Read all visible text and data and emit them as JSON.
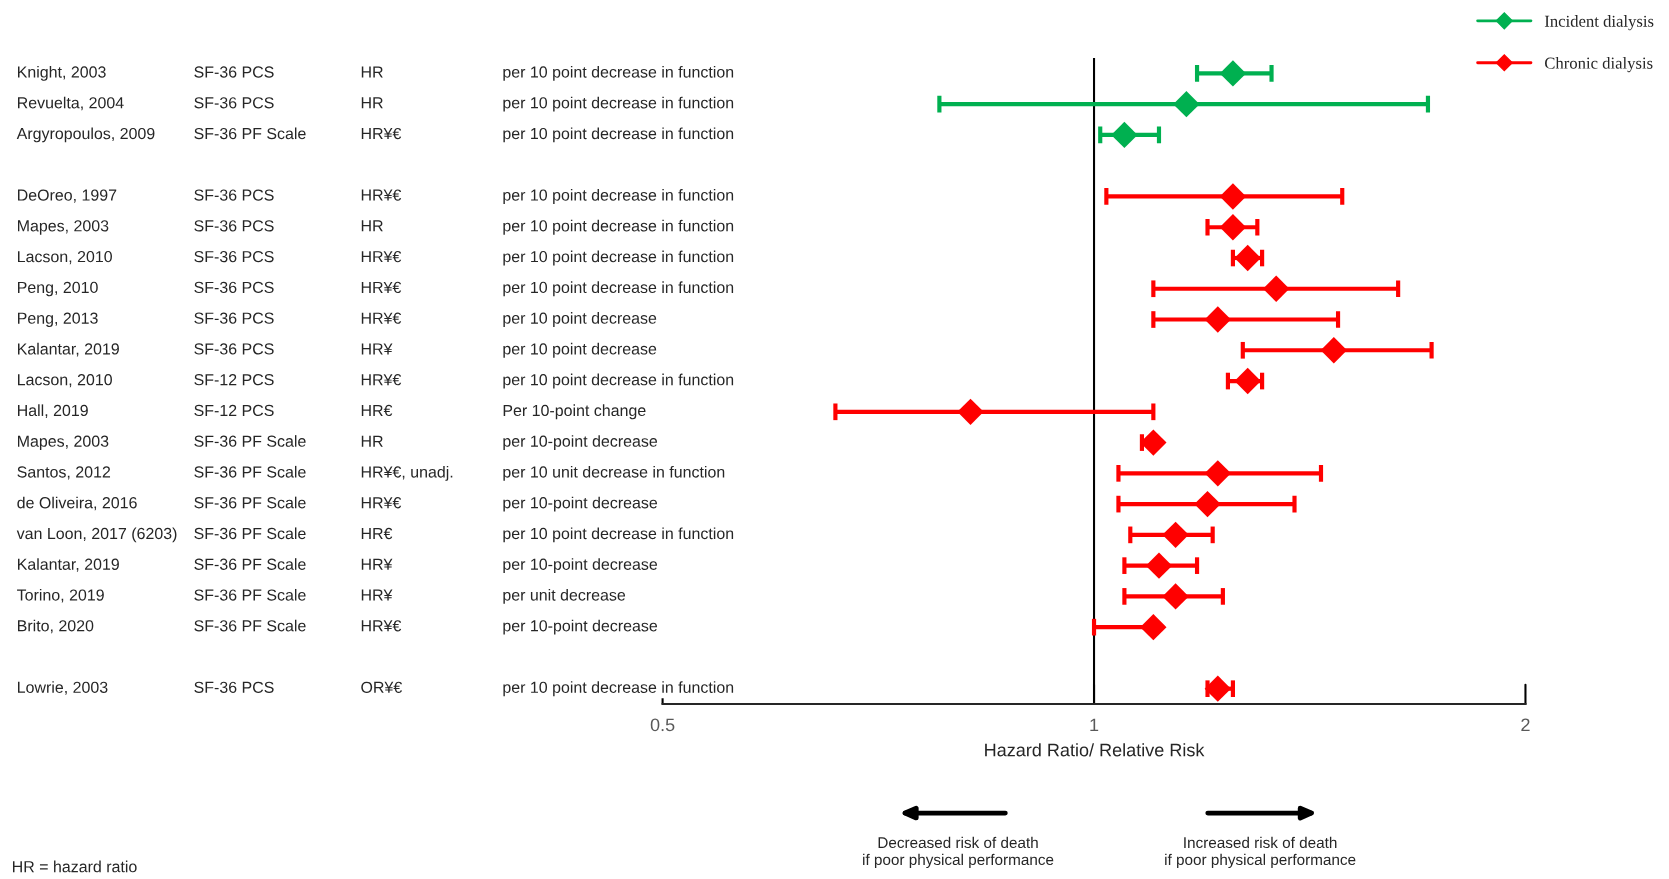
{
  "chart_data": {
    "type": "scatter",
    "orientation": "horizontal",
    "categories": [
      "Knight, 2003\tSF-36 PCS\tHR\tper 10 point decrease in function",
      "Revuelta, 2004\tSF-36 PCS\tHR\tper 10 point decrease in function",
      "Argyropoulos, 2009\tSF-36 PF Scale\tHR¥€\tper 10 point decrease in function",
      null,
      "DeOreo, 1997\tSF-36 PCS\tHR¥€\tper 10 point decrease in function",
      "Mapes, 2003\tSF-36 PCS\tHR\tper 10 point decrease in function",
      "Lacson, 2010\tSF-36 PCS\tHR¥€\tper 10 point decrease in function",
      "Peng, 2010\tSF-36 PCS\tHR¥€\tper 10 point decrease in function",
      "Peng, 2013\tSF-36 PCS\tHR¥€\tper 10 point decrease",
      "Kalantar, 2019\tSF-36 PCS\tHR¥\tper 10 point decrease",
      "Lacson, 2010\tSF-12 PCS\tHR¥€\tper 10 point decrease in function",
      "Hall, 2019\tSF-12 PCS\tHR€\tPer 10-point change",
      "Mapes, 2003\tSF-36 PF Scale\tHR\tper 10-point decrease",
      "Santos, 2012\tSF-36 PF Scale\tHR¥€, unadj.\tper 10 unit decrease in function",
      "de Oliveira, 2016\tSF-36 PF Scale\tHR¥€\tper 10-point decrease",
      "van Loon, 2017 (6203)\tSF-36 PF Scale\tHR€\tper 10 point decrease in function",
      "Kalantar, 2019\tSF-36 PF Scale\tHR¥\tper 10-point decrease",
      "Torino, 2019\tSF-36 PF Scale\tHR¥\tper unit decrease",
      "Brito, 2020\tSF-36 PF Scale\tHR¥€\tper 10-point decrease",
      null,
      "Lowrie, 2003\tSF-36 PCS\tOR¥€\tper 10 point decrease in function"
    ],
    "series": [
      {
        "name": "Incident dialysis",
        "color": "#00b050",
        "values": [
          1.25,
          1.16,
          1.05,
          null,
          null,
          null,
          null,
          null,
          null,
          null,
          null,
          null,
          null,
          null,
          null,
          null,
          null,
          null,
          null,
          null,
          null
        ],
        "errors": [
          [
            1.18,
            1.33
          ],
          [
            0.78,
            1.71
          ],
          [
            1.01,
            1.11
          ],
          null,
          null,
          null,
          null,
          null,
          null,
          null,
          null,
          null,
          null,
          null,
          null,
          null,
          null,
          null,
          null,
          null,
          null
        ]
      },
      {
        "name": "Chronic dialysis",
        "color": "#ff0000",
        "values": [
          null,
          null,
          null,
          null,
          1.25,
          1.25,
          1.28,
          1.34,
          1.22,
          1.47,
          1.28,
          0.82,
          1.1,
          1.22,
          1.2,
          1.14,
          1.11,
          1.14,
          1.1,
          null,
          1.22
        ],
        "errors": [
          null,
          null,
          null,
          null,
          [
            1.02,
            1.49
          ],
          [
            1.2,
            1.3
          ],
          [
            1.25,
            1.31
          ],
          [
            1.1,
            1.63
          ],
          [
            1.1,
            1.48
          ],
          [
            1.27,
            1.72
          ],
          [
            1.24,
            1.31
          ],
          [
            0.66,
            1.1
          ],
          [
            1.08,
            1.1
          ],
          [
            1.04,
            1.44
          ],
          [
            1.04,
            1.38
          ],
          [
            1.06,
            1.21
          ],
          [
            1.05,
            1.18
          ],
          [
            1.05,
            1.23
          ],
          [
            1.0,
            1.1
          ],
          null,
          [
            1.2,
            1.25
          ]
        ]
      }
    ],
    "xlabel": "Hazard Ratio/ Relative Risk",
    "log": "x",
    "xlim": [
      0.5,
      2
    ],
    "xticks": [
      0.5,
      1,
      2
    ],
    "ref_lines": [
      {
        "axis": "x",
        "value": 1,
        "color": "#000000"
      }
    ],
    "marker": "diamond",
    "legend": "top right",
    "grid": false,
    "annotations": [
      "Decreased risk of death\nif poor physical performance",
      "Increased risk of death\nif poor physical performance",
      "HR = hazard ratio"
    ]
  }
}
